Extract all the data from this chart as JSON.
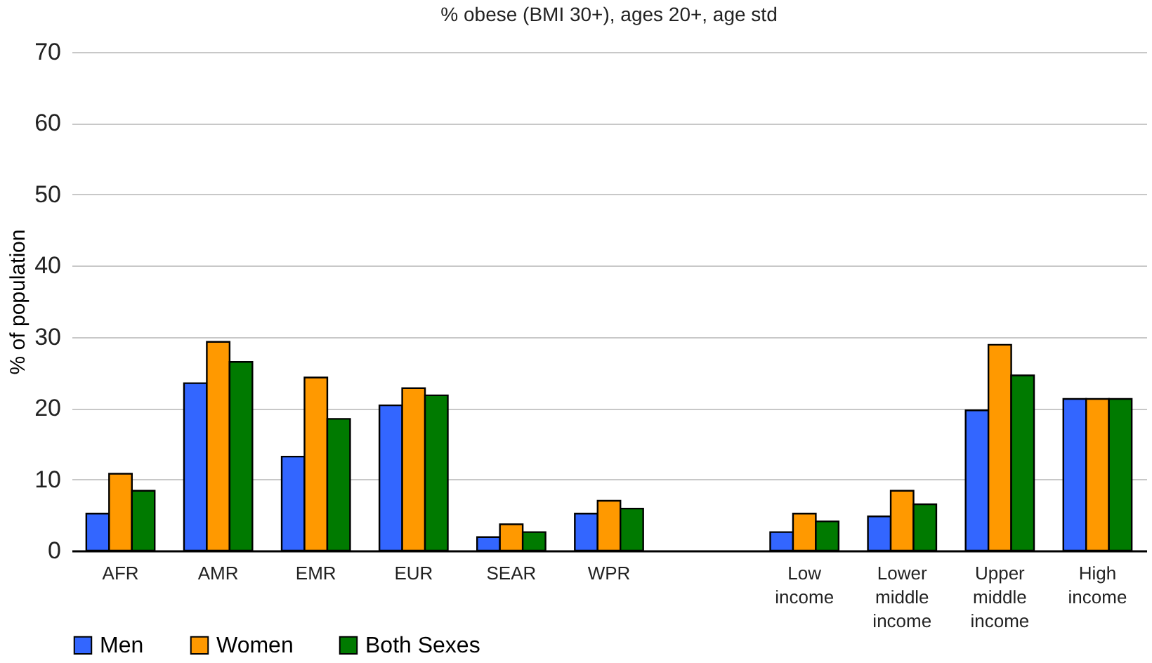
{
  "chart_data": {
    "type": "bar",
    "title": "% obese (BMI 30+), ages 20+, age std",
    "ylabel": "% of population",
    "categories": [
      "AFR",
      "AMR",
      "EMR",
      "EUR",
      "SEAR",
      "WPR",
      null,
      "Low income",
      "Lower middle income",
      "Upper middle income",
      "High income"
    ],
    "series": [
      {
        "name": "Men",
        "color": "#3366ff",
        "values": [
          5.2,
          23.5,
          13.2,
          20.4,
          1.9,
          5.2,
          null,
          2.6,
          4.8,
          19.7,
          21.3
        ]
      },
      {
        "name": "Women",
        "color": "#ff9900",
        "values": [
          10.8,
          29.3,
          24.3,
          22.8,
          3.7,
          7.0,
          null,
          5.2,
          8.4,
          28.9,
          21.3
        ]
      },
      {
        "name": "Both Sexes",
        "color": "#007a00",
        "values": [
          8.4,
          26.5,
          18.5,
          21.8,
          2.6,
          5.9,
          null,
          4.1,
          6.5,
          24.6,
          21.3
        ]
      }
    ],
    "ylim": [
      0,
      70
    ],
    "yticks": [
      0,
      10,
      20,
      30,
      40,
      50,
      60,
      70
    ],
    "grid": "y",
    "legend": "bottom"
  }
}
